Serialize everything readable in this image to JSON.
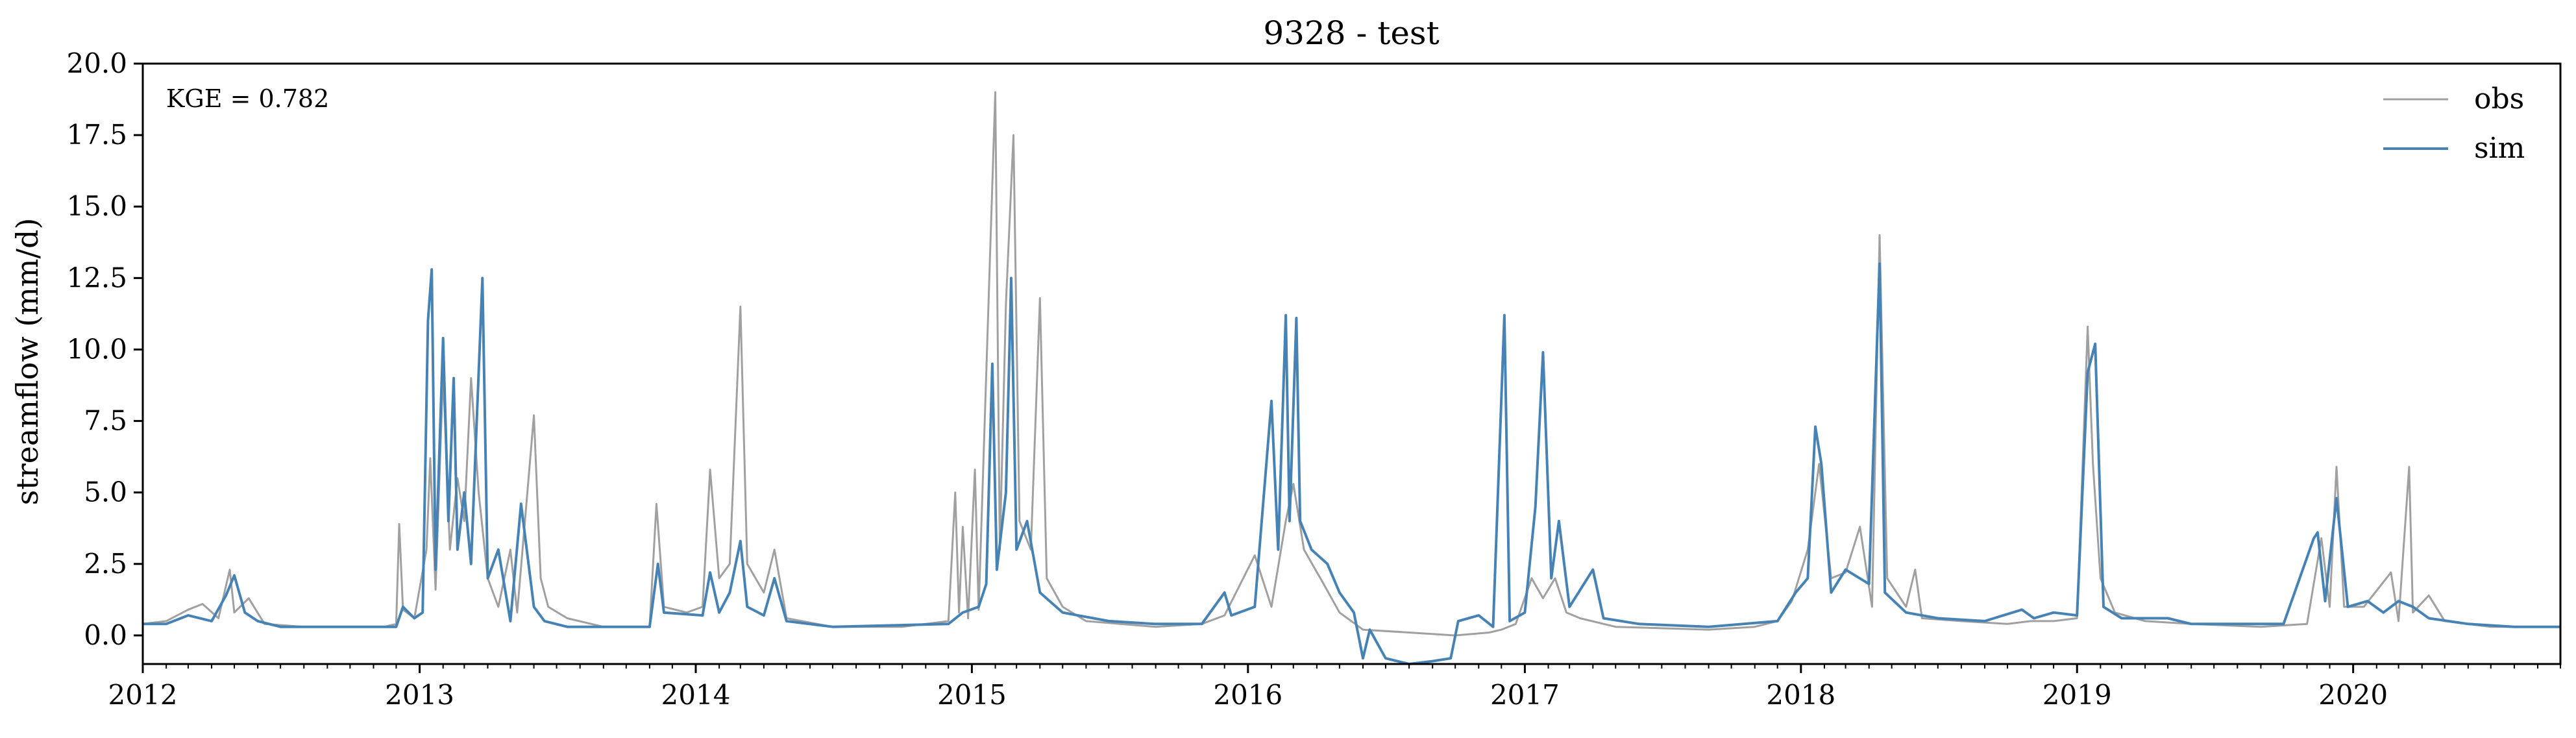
{
  "chart_data": {
    "type": "line",
    "title": "9328 - test",
    "xlabel": "",
    "ylabel": "streamflow (mm/d)",
    "xlim": [
      "2012-01-01",
      "2020-10-01"
    ],
    "ylim": [
      -1.0,
      20.0
    ],
    "yticks": [
      "0.0",
      "2.5",
      "5.0",
      "7.5",
      "10.0",
      "12.5",
      "15.0",
      "17.5",
      "20.0"
    ],
    "xticks": [
      {
        "date": "2012-01-01",
        "label": "2012"
      },
      {
        "date": "2013-01-01",
        "label": "2013"
      },
      {
        "date": "2014-01-01",
        "label": "2014"
      },
      {
        "date": "2015-01-01",
        "label": "2015"
      },
      {
        "date": "2016-01-01",
        "label": "2016"
      },
      {
        "date": "2017-01-01",
        "label": "2017"
      },
      {
        "date": "2018-01-01",
        "label": "2018"
      },
      {
        "date": "2019-01-01",
        "label": "2019"
      },
      {
        "date": "2020-01-01",
        "label": "2020"
      }
    ],
    "annotation": "KGE = 0.782",
    "grid": false,
    "legend_position": "top-right",
    "series": [
      {
        "name": "obs",
        "color": "#a0a0a0",
        "points": [
          [
            "2012-01-01",
            0.4
          ],
          [
            "2012-02-01",
            0.5
          ],
          [
            "2012-03-01",
            0.9
          ],
          [
            "2012-03-20",
            1.1
          ],
          [
            "2012-04-10",
            0.6
          ],
          [
            "2012-04-25",
            2.3
          ],
          [
            "2012-05-01",
            0.8
          ],
          [
            "2012-05-20",
            1.3
          ],
          [
            "2012-06-10",
            0.4
          ],
          [
            "2012-08-01",
            0.3
          ],
          [
            "2012-10-01",
            0.3
          ],
          [
            "2012-11-15",
            0.3
          ],
          [
            "2012-12-01",
            0.4
          ],
          [
            "2012-12-05",
            3.9
          ],
          [
            "2012-12-10",
            0.9
          ],
          [
            "2012-12-25",
            0.6
          ],
          [
            "2013-01-10",
            3.0
          ],
          [
            "2013-01-15",
            6.2
          ],
          [
            "2013-01-22",
            1.6
          ],
          [
            "2013-02-01",
            9.2
          ],
          [
            "2013-02-10",
            3.0
          ],
          [
            "2013-02-20",
            5.5
          ],
          [
            "2013-03-01",
            4.0
          ],
          [
            "2013-03-10",
            9.0
          ],
          [
            "2013-03-20",
            5.0
          ],
          [
            "2013-04-01",
            2.0
          ],
          [
            "2013-04-15",
            1.0
          ],
          [
            "2013-05-01",
            3.0
          ],
          [
            "2013-05-10",
            0.8
          ],
          [
            "2013-06-01",
            7.7
          ],
          [
            "2013-06-10",
            2.0
          ],
          [
            "2013-06-20",
            1.0
          ],
          [
            "2013-07-15",
            0.6
          ],
          [
            "2013-09-01",
            0.3
          ],
          [
            "2013-11-01",
            0.3
          ],
          [
            "2013-11-10",
            4.6
          ],
          [
            "2013-11-20",
            1.0
          ],
          [
            "2013-12-20",
            0.8
          ],
          [
            "2014-01-10",
            1.0
          ],
          [
            "2014-01-20",
            5.8
          ],
          [
            "2014-02-01",
            2.0
          ],
          [
            "2014-02-15",
            2.5
          ],
          [
            "2014-03-01",
            11.5
          ],
          [
            "2014-03-10",
            2.5
          ],
          [
            "2014-04-01",
            1.5
          ],
          [
            "2014-04-15",
            3.0
          ],
          [
            "2014-05-01",
            0.6
          ],
          [
            "2014-07-01",
            0.3
          ],
          [
            "2014-10-01",
            0.3
          ],
          [
            "2014-12-01",
            0.5
          ],
          [
            "2014-12-10",
            5.0
          ],
          [
            "2014-12-15",
            0.8
          ],
          [
            "2014-12-20",
            3.8
          ],
          [
            "2014-12-27",
            0.6
          ],
          [
            "2015-01-05",
            5.8
          ],
          [
            "2015-01-10",
            0.9
          ],
          [
            "2015-02-01",
            19.0
          ],
          [
            "2015-02-07",
            3.0
          ],
          [
            "2015-02-15",
            11.6
          ],
          [
            "2015-02-25",
            17.5
          ],
          [
            "2015-03-05",
            4.0
          ],
          [
            "2015-03-20",
            3.0
          ],
          [
            "2015-04-01",
            11.8
          ],
          [
            "2015-04-10",
            2.0
          ],
          [
            "2015-05-01",
            1.0
          ],
          [
            "2015-06-01",
            0.5
          ],
          [
            "2015-09-01",
            0.3
          ],
          [
            "2015-11-01",
            0.4
          ],
          [
            "2015-12-01",
            0.7
          ],
          [
            "2016-01-10",
            2.8
          ],
          [
            "2016-02-01",
            1.0
          ],
          [
            "2016-02-20",
            4.0
          ],
          [
            "2016-03-01",
            5.3
          ],
          [
            "2016-03-15",
            3.0
          ],
          [
            "2016-04-10",
            1.8
          ],
          [
            "2016-05-01",
            0.8
          ],
          [
            "2016-06-01",
            0.2
          ],
          [
            "2016-08-01",
            0.1
          ],
          [
            "2016-10-01",
            0.0
          ],
          [
            "2016-11-15",
            0.1
          ],
          [
            "2016-12-01",
            0.2
          ],
          [
            "2016-12-20",
            0.4
          ],
          [
            "2017-01-10",
            2.0
          ],
          [
            "2017-01-25",
            1.3
          ],
          [
            "2017-02-10",
            2.0
          ],
          [
            "2017-02-25",
            0.8
          ],
          [
            "2017-03-15",
            0.6
          ],
          [
            "2017-05-01",
            0.3
          ],
          [
            "2017-09-01",
            0.2
          ],
          [
            "2017-11-01",
            0.3
          ],
          [
            "2017-12-01",
            0.5
          ],
          [
            "2017-12-20",
            1.2
          ],
          [
            "2018-01-10",
            3.0
          ],
          [
            "2018-01-25",
            6.0
          ],
          [
            "2018-02-10",
            2.0
          ],
          [
            "2018-03-01",
            2.2
          ],
          [
            "2018-03-20",
            3.8
          ],
          [
            "2018-04-05",
            1.0
          ],
          [
            "2018-04-15",
            14.0
          ],
          [
            "2018-04-25",
            2.0
          ],
          [
            "2018-05-20",
            1.0
          ],
          [
            "2018-06-01",
            2.3
          ],
          [
            "2018-06-10",
            0.6
          ],
          [
            "2018-08-01",
            0.5
          ],
          [
            "2018-10-01",
            0.4
          ],
          [
            "2018-11-01",
            0.5
          ],
          [
            "2018-12-01",
            0.5
          ],
          [
            "2019-01-01",
            0.6
          ],
          [
            "2019-01-15",
            10.8
          ],
          [
            "2019-01-22",
            6.0
          ],
          [
            "2019-02-01",
            2.0
          ],
          [
            "2019-02-20",
            0.8
          ],
          [
            "2019-04-01",
            0.5
          ],
          [
            "2019-06-01",
            0.4
          ],
          [
            "2019-09-01",
            0.3
          ],
          [
            "2019-11-01",
            0.4
          ],
          [
            "2019-11-20",
            3.4
          ],
          [
            "2019-12-01",
            1.0
          ],
          [
            "2019-12-10",
            5.9
          ],
          [
            "2019-12-20",
            1.0
          ],
          [
            "2020-01-15",
            1.0
          ],
          [
            "2020-02-20",
            2.2
          ],
          [
            "2020-03-01",
            0.5
          ],
          [
            "2020-03-15",
            5.9
          ],
          [
            "2020-03-20",
            0.8
          ],
          [
            "2020-04-10",
            1.4
          ],
          [
            "2020-05-01",
            0.5
          ],
          [
            "2020-07-01",
            0.3
          ],
          [
            "2020-10-01",
            0.3
          ]
        ]
      },
      {
        "name": "sim",
        "color": "#4682b4",
        "points": [
          [
            "2012-01-01",
            0.4
          ],
          [
            "2012-02-01",
            0.4
          ],
          [
            "2012-03-01",
            0.7
          ],
          [
            "2012-04-01",
            0.5
          ],
          [
            "2012-04-20",
            1.4
          ],
          [
            "2012-05-01",
            2.1
          ],
          [
            "2012-05-15",
            0.8
          ],
          [
            "2012-06-01",
            0.5
          ],
          [
            "2012-07-01",
            0.3
          ],
          [
            "2012-11-01",
            0.3
          ],
          [
            "2012-12-01",
            0.3
          ],
          [
            "2012-12-10",
            1.0
          ],
          [
            "2012-12-25",
            0.6
          ],
          [
            "2013-01-05",
            0.8
          ],
          [
            "2013-01-12",
            11.0
          ],
          [
            "2013-01-17",
            12.8
          ],
          [
            "2013-01-22",
            2.3
          ],
          [
            "2013-02-01",
            10.4
          ],
          [
            "2013-02-08",
            4.0
          ],
          [
            "2013-02-15",
            9.0
          ],
          [
            "2013-02-20",
            3.0
          ],
          [
            "2013-03-01",
            5.0
          ],
          [
            "2013-03-10",
            2.5
          ],
          [
            "2013-03-25",
            12.5
          ],
          [
            "2013-04-01",
            2.0
          ],
          [
            "2013-04-15",
            3.0
          ],
          [
            "2013-05-01",
            0.5
          ],
          [
            "2013-05-15",
            4.6
          ],
          [
            "2013-06-01",
            1.0
          ],
          [
            "2013-06-15",
            0.5
          ],
          [
            "2013-07-15",
            0.3
          ],
          [
            "2013-11-01",
            0.3
          ],
          [
            "2013-11-12",
            2.5
          ],
          [
            "2013-11-20",
            0.8
          ],
          [
            "2014-01-10",
            0.7
          ],
          [
            "2014-01-20",
            2.2
          ],
          [
            "2014-02-01",
            0.8
          ],
          [
            "2014-02-15",
            1.5
          ],
          [
            "2014-03-01",
            3.3
          ],
          [
            "2014-03-10",
            1.0
          ],
          [
            "2014-04-01",
            0.7
          ],
          [
            "2014-04-15",
            2.0
          ],
          [
            "2014-05-01",
            0.5
          ],
          [
            "2014-07-01",
            0.3
          ],
          [
            "2014-12-01",
            0.4
          ],
          [
            "2014-12-20",
            0.8
          ],
          [
            "2015-01-10",
            1.0
          ],
          [
            "2015-01-20",
            1.8
          ],
          [
            "2015-01-28",
            9.5
          ],
          [
            "2015-02-03",
            2.3
          ],
          [
            "2015-02-15",
            5.0
          ],
          [
            "2015-02-22",
            12.5
          ],
          [
            "2015-03-01",
            3.0
          ],
          [
            "2015-03-15",
            4.0
          ],
          [
            "2015-04-01",
            1.5
          ],
          [
            "2015-05-01",
            0.8
          ],
          [
            "2015-07-01",
            0.5
          ],
          [
            "2015-09-01",
            0.4
          ],
          [
            "2015-11-01",
            0.4
          ],
          [
            "2015-12-01",
            1.5
          ],
          [
            "2015-12-10",
            0.7
          ],
          [
            "2016-01-10",
            1.0
          ],
          [
            "2016-02-01",
            8.2
          ],
          [
            "2016-02-10",
            3.0
          ],
          [
            "2016-02-20",
            11.2
          ],
          [
            "2016-02-25",
            4.0
          ],
          [
            "2016-03-05",
            11.1
          ],
          [
            "2016-03-10",
            4.0
          ],
          [
            "2016-03-25",
            3.0
          ],
          [
            "2016-04-15",
            2.5
          ],
          [
            "2016-05-01",
            1.5
          ],
          [
            "2016-05-20",
            0.8
          ],
          [
            "2016-06-01",
            -0.8
          ],
          [
            "2016-06-10",
            0.2
          ],
          [
            "2016-07-01",
            -0.8
          ],
          [
            "2016-08-01",
            -1.0
          ],
          [
            "2016-09-01",
            -0.9
          ],
          [
            "2016-09-25",
            -0.8
          ],
          [
            "2016-10-05",
            0.5
          ],
          [
            "2016-11-01",
            0.7
          ],
          [
            "2016-11-20",
            0.3
          ],
          [
            "2016-12-05",
            11.2
          ],
          [
            "2016-12-12",
            0.5
          ],
          [
            "2017-01-01",
            0.8
          ],
          [
            "2017-01-15",
            4.5
          ],
          [
            "2017-01-25",
            9.9
          ],
          [
            "2017-02-05",
            2.0
          ],
          [
            "2017-02-15",
            4.0
          ],
          [
            "2017-03-01",
            1.0
          ],
          [
            "2017-04-01",
            2.3
          ],
          [
            "2017-04-15",
            0.6
          ],
          [
            "2017-06-01",
            0.4
          ],
          [
            "2017-09-01",
            0.3
          ],
          [
            "2017-12-01",
            0.5
          ],
          [
            "2017-12-25",
            1.5
          ],
          [
            "2018-01-10",
            2.0
          ],
          [
            "2018-01-20",
            7.3
          ],
          [
            "2018-01-28",
            6.0
          ],
          [
            "2018-02-10",
            1.5
          ],
          [
            "2018-03-01",
            2.3
          ],
          [
            "2018-04-01",
            1.8
          ],
          [
            "2018-04-15",
            13.0
          ],
          [
            "2018-04-22",
            1.5
          ],
          [
            "2018-05-20",
            0.8
          ],
          [
            "2018-07-01",
            0.6
          ],
          [
            "2018-09-01",
            0.5
          ],
          [
            "2018-10-20",
            0.9
          ],
          [
            "2018-11-05",
            0.6
          ],
          [
            "2018-12-01",
            0.8
          ],
          [
            "2019-01-01",
            0.7
          ],
          [
            "2019-01-15",
            9.2
          ],
          [
            "2019-01-25",
            10.2
          ],
          [
            "2019-02-05",
            1.0
          ],
          [
            "2019-03-01",
            0.6
          ],
          [
            "2019-05-01",
            0.6
          ],
          [
            "2019-06-01",
            0.4
          ],
          [
            "2019-10-01",
            0.4
          ],
          [
            "2019-11-10",
            3.4
          ],
          [
            "2019-11-15",
            3.6
          ],
          [
            "2019-11-25",
            1.2
          ],
          [
            "2019-12-10",
            4.8
          ],
          [
            "2019-12-25",
            1.0
          ],
          [
            "2020-01-20",
            1.2
          ],
          [
            "2020-02-10",
            0.8
          ],
          [
            "2020-03-01",
            1.2
          ],
          [
            "2020-03-20",
            1.0
          ],
          [
            "2020-04-10",
            0.6
          ],
          [
            "2020-06-01",
            0.4
          ],
          [
            "2020-08-01",
            0.3
          ],
          [
            "2020-10-01",
            0.3
          ]
        ]
      }
    ]
  }
}
